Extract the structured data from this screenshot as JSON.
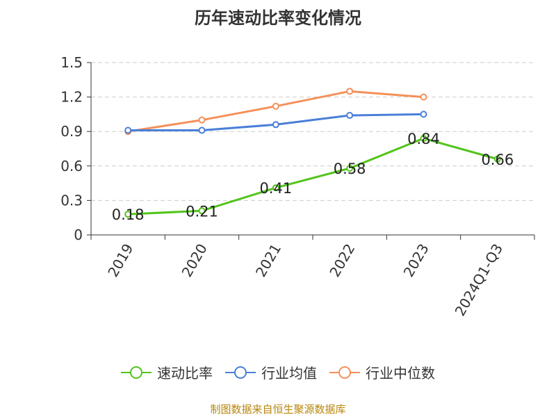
{
  "chart_data": {
    "type": "line",
    "title": "历年速动比率变化情况",
    "categories": [
      "2019",
      "2020",
      "2021",
      "2022",
      "2023",
      "2024Q1-Q3"
    ],
    "yticks": [
      "0",
      "0.3",
      "0.6",
      "0.9",
      "1.2",
      "1.5"
    ],
    "ylim": [
      0,
      1.5
    ],
    "grid": true,
    "legend_position": "bottom",
    "series": [
      {
        "name": "速动比率",
        "color": "#52c41a",
        "values": [
          0.18,
          0.21,
          0.41,
          0.58,
          0.84,
          0.66
        ],
        "labels": [
          "0.18",
          "0.21",
          "0.41",
          "0.58",
          "0.84",
          "0.66"
        ]
      },
      {
        "name": "行业均值",
        "color": "#4a7fd8",
        "values": [
          0.91,
          0.91,
          0.96,
          1.04,
          1.05,
          null
        ]
      },
      {
        "name": "行业中位数",
        "color": "#f5905a",
        "values": [
          0.9,
          1.0,
          1.12,
          1.25,
          1.2,
          null
        ]
      }
    ]
  },
  "source": "制图数据来自恒生聚源数据库"
}
